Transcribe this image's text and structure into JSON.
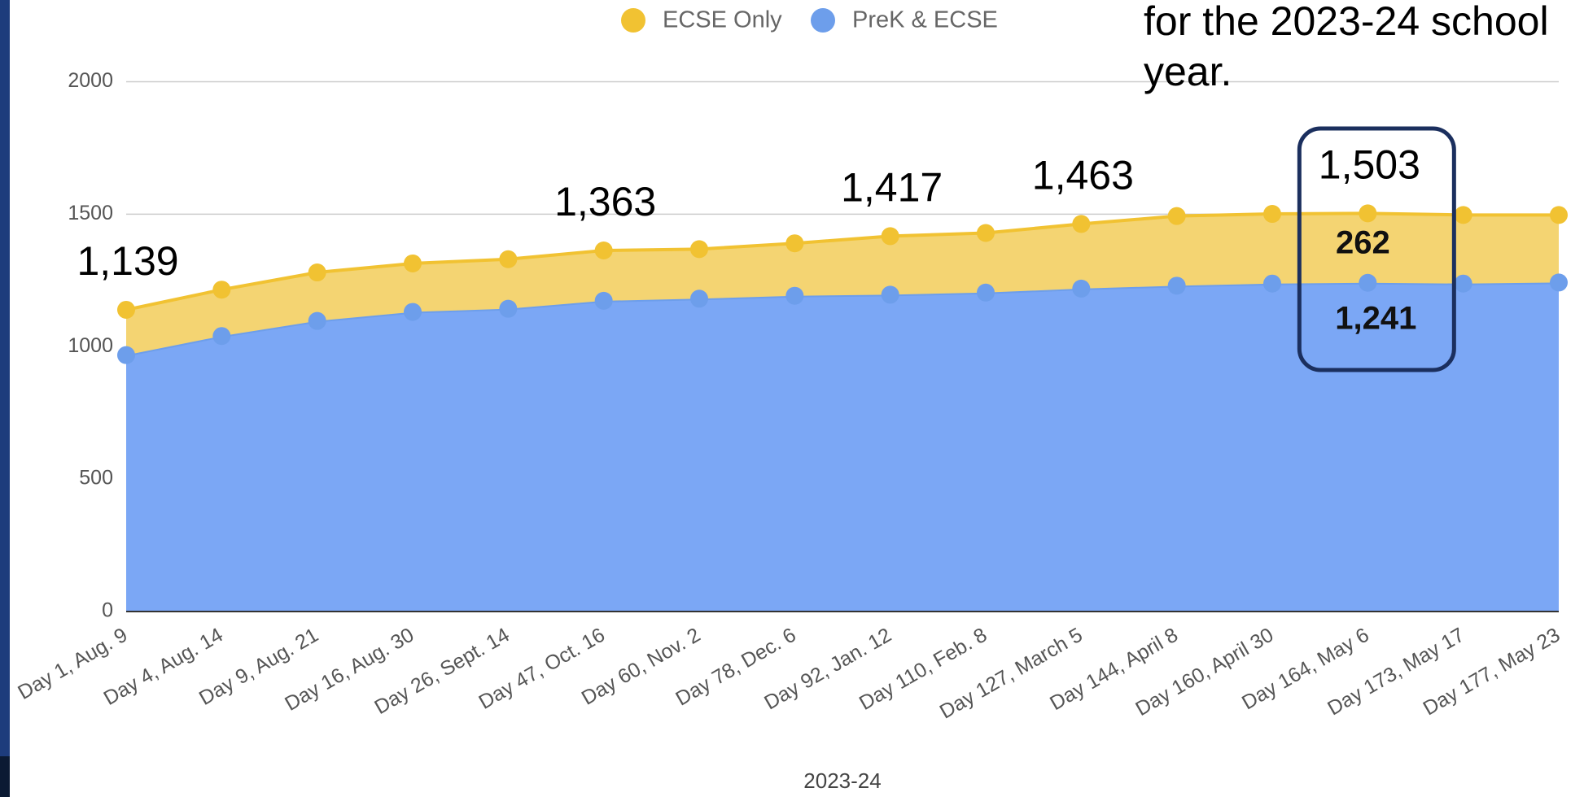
{
  "chart_data": {
    "type": "stacked_area",
    "x_label": "2023-24",
    "categories": [
      "Day 1, Aug. 9",
      "Day 4, Aug. 14",
      "Day 9, Aug. 21",
      "Day 16, Aug. 30",
      "Day 26, Sept. 14",
      "Day 47, Oct. 16",
      "Day 60, Nov. 2",
      "Day 78, Dec. 6",
      "Day 92, Jan. 12",
      "Day 110, Feb. 8",
      "Day 127, March 5",
      "Day 144, April 8",
      "Day 160, April 30",
      "Day 164, May 6",
      "Day 173, May 17",
      "Day 177, May 23"
    ],
    "series": [
      {
        "name": "ECSE Only",
        "color": "#f1c232",
        "fill": "#f4d472",
        "values": [
          171,
          175,
          183,
          183,
          187,
          190,
          187,
          198,
          221,
          225,
          244,
          263,
          263,
          262,
          259,
          255
        ],
        "value_labels": [
          null,
          null,
          null,
          null,
          null,
          null,
          null,
          null,
          null,
          null,
          null,
          null,
          null,
          "262",
          null,
          null
        ]
      },
      {
        "name": "PreK & ECSE",
        "color": "#6d9eeb",
        "fill": "#7ba7f5",
        "values": [
          968,
          1040,
          1097,
          1131,
          1143,
          1173,
          1181,
          1192,
          1196,
          1204,
          1219,
          1230,
          1238,
          1241,
          1238,
          1242
        ],
        "value_labels": [
          null,
          null,
          null,
          null,
          null,
          null,
          null,
          null,
          null,
          null,
          null,
          null,
          null,
          "1,241",
          null,
          null
        ]
      }
    ],
    "total_labels": [
      {
        "category": "Day 1, Aug. 9",
        "text": "1,139"
      },
      {
        "category": "Day 47, Oct. 16",
        "text": "1,363"
      },
      {
        "category": "Day 92, Jan. 12",
        "text": "1,417"
      },
      {
        "category": "Day 127, March 5",
        "text": "1,463"
      },
      {
        "category": "Day 164, May 6",
        "text": "1,503"
      }
    ],
    "highlight": "Day 164, May 6",
    "note_lines": [
      "for the 2023-24 school",
      "year."
    ],
    "ylim": [
      0,
      2000
    ],
    "yticks": [
      0,
      500,
      1000,
      1500,
      2000
    ],
    "grid": true,
    "legend": "top"
  }
}
